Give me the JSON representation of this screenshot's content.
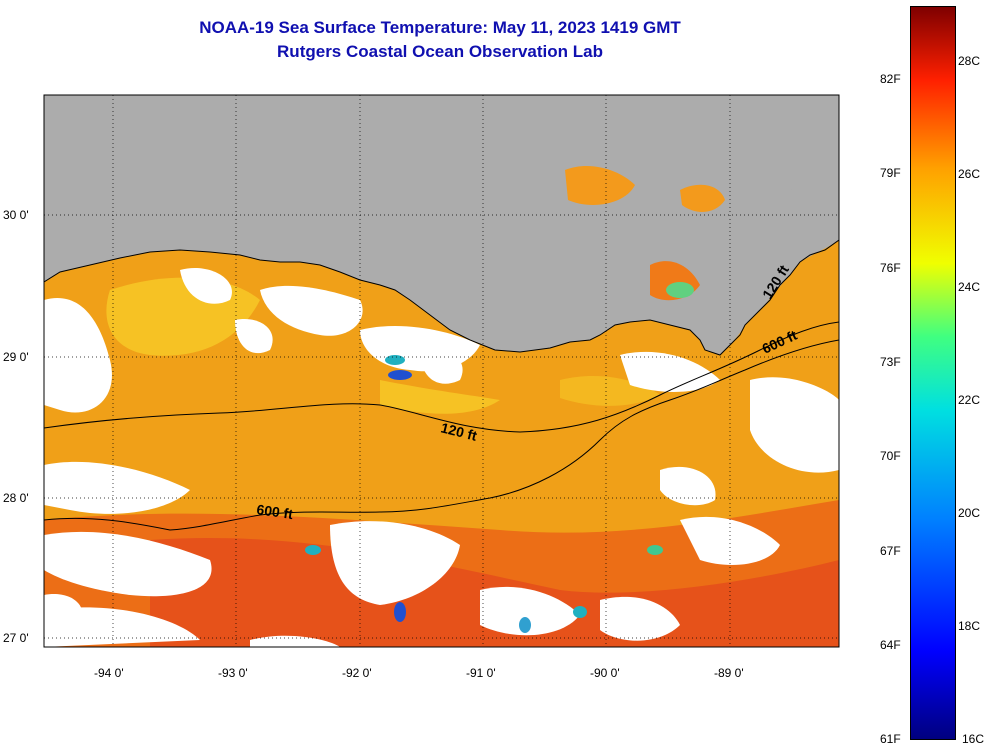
{
  "header": {
    "title_line1": "NOAA-19 Sea Surface Temperature:  May 11, 2023 1419 GMT",
    "title_line2": "Rutgers Coastal Ocean Observation Lab"
  },
  "map": {
    "lat_labels": [
      "30 0'",
      "29 0'",
      "28 0'",
      "27 0'"
    ],
    "lon_labels": [
      "-94 0'",
      "-93 0'",
      "-92 0'",
      "-91 0'",
      "-90 0'",
      "-89 0'"
    ],
    "contour_labels": {
      "c120_west": "120 ft",
      "c600_west": "600 ft",
      "c120_east": "120 ft",
      "c600_east": "600 ft"
    },
    "colors": {
      "land": "#acacac",
      "ocean_warm": "#f08a14",
      "ocean_hot": "#e8541a",
      "ocean_mild": "#f6b41c",
      "shelf_yellow": "#f5d430",
      "cloud": "#ffffff"
    }
  },
  "colorbar": {
    "fahrenheit_labels": [
      "82F",
      "79F",
      "76F",
      "73F",
      "70F",
      "67F",
      "64F",
      "61F"
    ],
    "celsius_labels": [
      "28C",
      "26C",
      "24C",
      "22C",
      "20C",
      "18C",
      "16C"
    ]
  }
}
